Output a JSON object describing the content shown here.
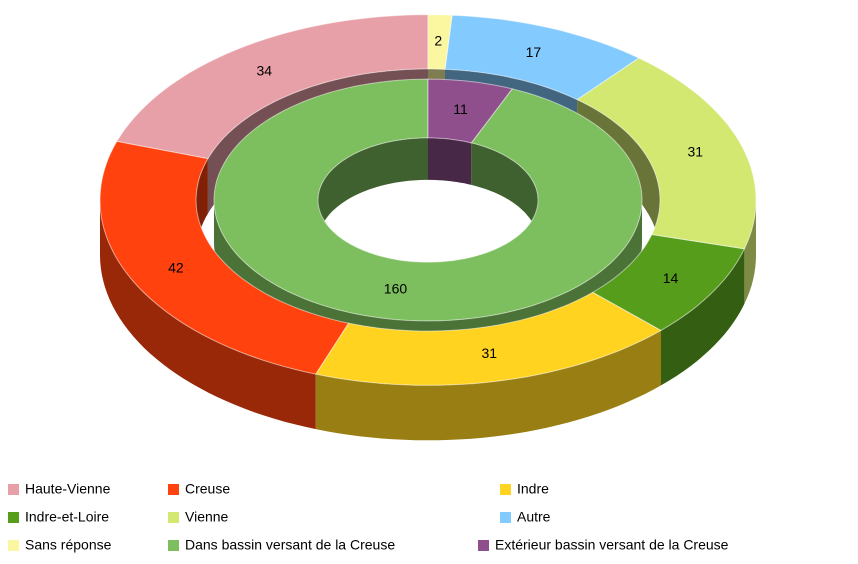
{
  "chart_data": {
    "type": "donut",
    "rings": [
      {
        "categories": [
          "Haute-Vienne",
          "Creuse",
          "Indre",
          "Indre-et-Loire",
          "Vienne",
          "Autre",
          "Sans réponse"
        ],
        "values": [
          34,
          42,
          31,
          14,
          31,
          17,
          2
        ],
        "colors": [
          "#e8a0a8",
          "#ff420e",
          "#ffd320",
          "#579d1c",
          "#d2e871",
          "#83caff",
          "#fbf7a0"
        ]
      },
      {
        "categories": [
          "Dans bassin versant de la Creuse",
          "Extérieur bassin versant de la Creuse"
        ],
        "values": [
          160,
          11
        ],
        "colors": [
          "#7dbf5e",
          "#8e4f8c"
        ]
      }
    ]
  }
}
